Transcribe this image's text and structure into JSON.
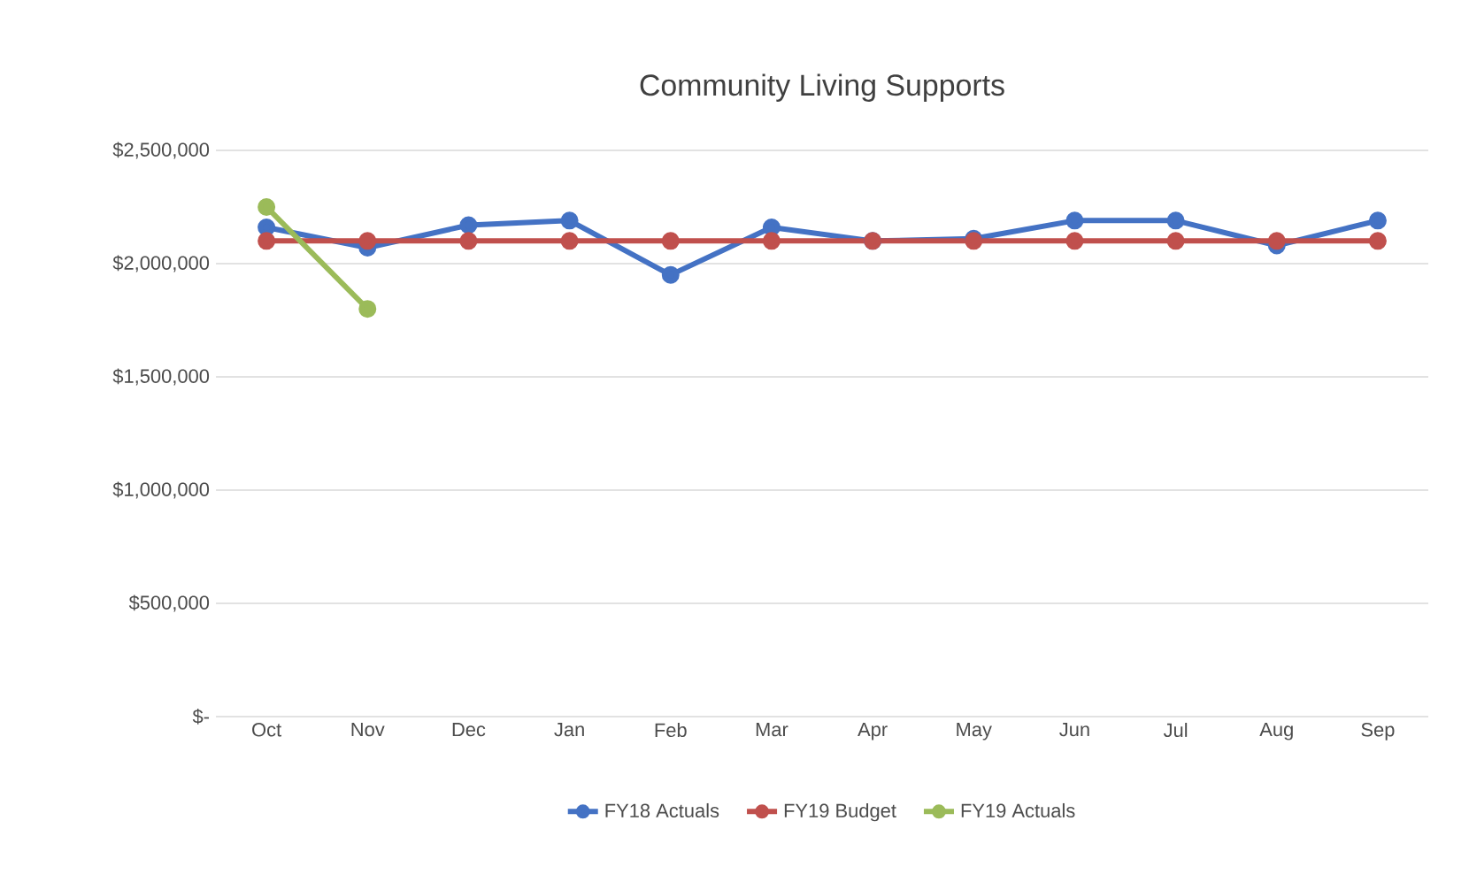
{
  "chart_data": {
    "type": "line",
    "title": "Community Living Supports",
    "categories": [
      "Oct",
      "Nov",
      "Dec",
      "Jan",
      "Feb",
      "Mar",
      "Apr",
      "May",
      "Jun",
      "Jul",
      "Aug",
      "Sep"
    ],
    "series": [
      {
        "name": "FY18 Actuals",
        "color": "#4472c4",
        "values": [
          2160000,
          2070000,
          2170000,
          2190000,
          1950000,
          2160000,
          2100000,
          2110000,
          2190000,
          2190000,
          2080000,
          2190000
        ]
      },
      {
        "name": "FY19 Budget",
        "color": "#c0504d",
        "values": [
          2100000,
          2100000,
          2100000,
          2100000,
          2100000,
          2100000,
          2100000,
          2100000,
          2100000,
          2100000,
          2100000,
          2100000
        ]
      },
      {
        "name": "FY19 Actuals",
        "color": "#9bbb59",
        "values": [
          2250000,
          1800000,
          null,
          null,
          null,
          null,
          null,
          null,
          null,
          null,
          null,
          null
        ]
      }
    ],
    "ylim": [
      0,
      2500000
    ],
    "yticks": [
      {
        "value": 0,
        "label": "$-"
      },
      {
        "value": 500000,
        "label": "$500,000"
      },
      {
        "value": 1000000,
        "label": "$1,000,000"
      },
      {
        "value": 1500000,
        "label": "$1,500,000"
      },
      {
        "value": 2000000,
        "label": "$2,000,000"
      },
      {
        "value": 2500000,
        "label": "$2,500,000"
      }
    ],
    "grid": "y",
    "legend": "bottom",
    "marker": "circle",
    "line_style": "solid"
  }
}
